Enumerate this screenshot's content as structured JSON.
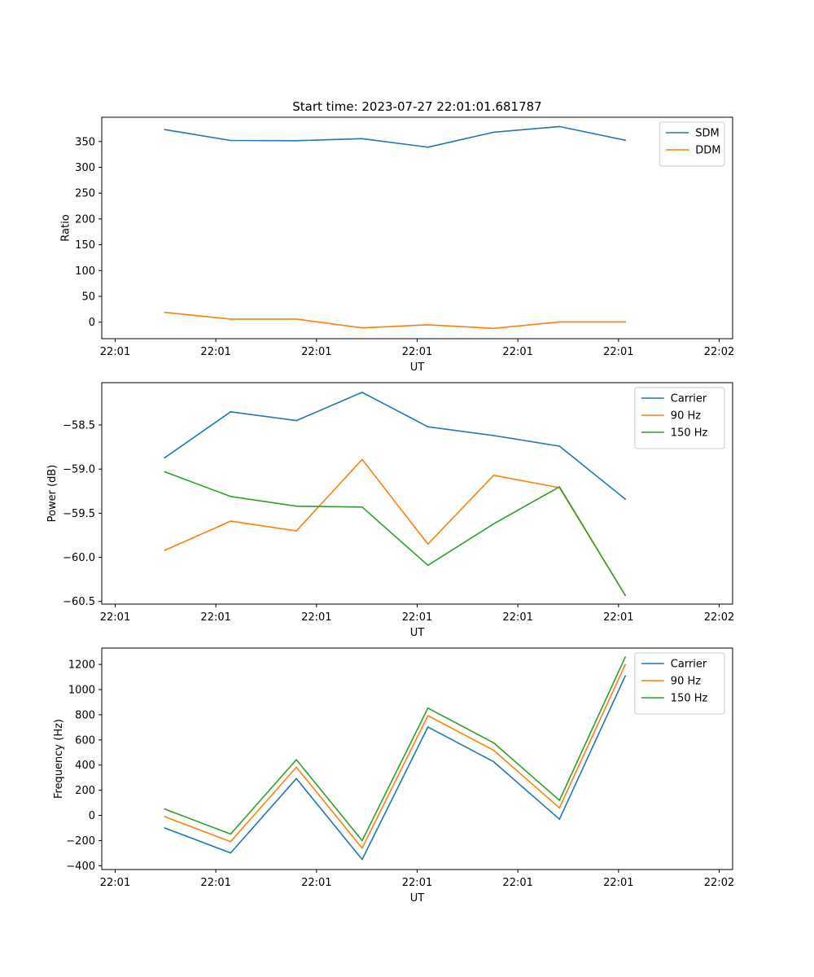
{
  "chart_data": [
    {
      "type": "line",
      "title": "Start time: 2023-07-27 22:01:01.681787",
      "xlabel": "UT",
      "ylabel": "Ratio",
      "xlim": [
        -0.2,
        9.2
      ],
      "ylim": [
        -32,
        397
      ],
      "x_ticks": [
        0,
        1.5,
        3,
        4.5,
        6,
        7.5,
        9
      ],
      "x_tick_labels": [
        "22:01",
        "22:01",
        "22:01",
        "22:01",
        "22:01",
        "22:01",
        "22:02"
      ],
      "y_ticks": [
        0,
        50,
        100,
        150,
        200,
        250,
        300,
        350
      ],
      "y_tick_labels": [
        "0",
        "50",
        "100",
        "150",
        "200",
        "250",
        "300",
        "350"
      ],
      "x": [
        0.74,
        1.72,
        2.7,
        3.68,
        4.66,
        5.64,
        6.62,
        7.6
      ],
      "legend_position": "upper-right",
      "series": [
        {
          "name": "SDM",
          "color": "#1f77b4",
          "values": [
            373,
            352,
            351.5,
            355.5,
            339,
            368,
            379,
            352.5
          ]
        },
        {
          "name": "DDM",
          "color": "#ff7f0e",
          "values": [
            19,
            6,
            6,
            -11,
            -5,
            -12,
            0.5,
            0.5
          ]
        }
      ]
    },
    {
      "type": "line",
      "title": "",
      "xlabel": "UT",
      "ylabel": "Power (dB)",
      "xlim": [
        -0.2,
        9.2
      ],
      "ylim": [
        -60.53,
        -58.02
      ],
      "x_ticks": [
        0,
        1.5,
        3,
        4.5,
        6,
        7.5,
        9
      ],
      "x_tick_labels": [
        "22:01",
        "22:01",
        "22:01",
        "22:01",
        "22:01",
        "22:01",
        "22:02"
      ],
      "y_ticks": [
        -60.5,
        -60.0,
        -59.5,
        -59.0,
        -58.5
      ],
      "y_tick_labels": [
        "−60.5",
        "−60.0",
        "−59.5",
        "−59.0",
        "−58.5"
      ],
      "x": [
        0.74,
        1.72,
        2.7,
        3.68,
        4.66,
        5.64,
        6.62,
        7.6
      ],
      "legend_position": "upper-right",
      "series": [
        {
          "name": "Carrier",
          "color": "#1f77b4",
          "values": [
            -58.87,
            -58.35,
            -58.45,
            -58.13,
            -58.52,
            -58.62,
            -58.74,
            -59.34
          ]
        },
        {
          "name": "90 Hz",
          "color": "#ff7f0e",
          "values": [
            -59.92,
            -59.59,
            -59.7,
            -58.89,
            -59.85,
            -59.07,
            -59.21,
            -60.43
          ]
        },
        {
          "name": "150 Hz",
          "color": "#2ca02c",
          "values": [
            -59.03,
            -59.31,
            -59.42,
            -59.43,
            -60.09,
            -59.62,
            -59.2,
            -60.43
          ]
        }
      ]
    },
    {
      "type": "line",
      "title": "",
      "xlabel": "UT",
      "ylabel": "Frequency (Hz)",
      "xlim": [
        -0.2,
        9.2
      ],
      "ylim": [
        -430,
        1330
      ],
      "x_ticks": [
        0,
        1.5,
        3,
        4.5,
        6,
        7.5,
        9
      ],
      "x_tick_labels": [
        "22:01",
        "22:01",
        "22:01",
        "22:01",
        "22:01",
        "22:01",
        "22:02"
      ],
      "y_ticks": [
        -400,
        -200,
        0,
        200,
        400,
        600,
        800,
        1000,
        1200
      ],
      "y_tick_labels": [
        "−400",
        "−200",
        "0",
        "200",
        "400",
        "600",
        "800",
        "1000",
        "1200"
      ],
      "x": [
        0.74,
        1.72,
        2.7,
        3.68,
        4.66,
        5.64,
        6.62,
        7.6
      ],
      "legend_position": "upper-right",
      "series": [
        {
          "name": "Carrier",
          "color": "#1f77b4",
          "values": [
            -100,
            -298,
            293,
            -350,
            703,
            427,
            -30,
            1108
          ]
        },
        {
          "name": "90 Hz",
          "color": "#ff7f0e",
          "values": [
            -10,
            -208,
            383,
            -260,
            793,
            517,
            60,
            1198
          ]
        },
        {
          "name": "150 Hz",
          "color": "#2ca02c",
          "values": [
            50,
            -148,
            443,
            -200,
            853,
            577,
            120,
            1258
          ]
        }
      ]
    }
  ]
}
